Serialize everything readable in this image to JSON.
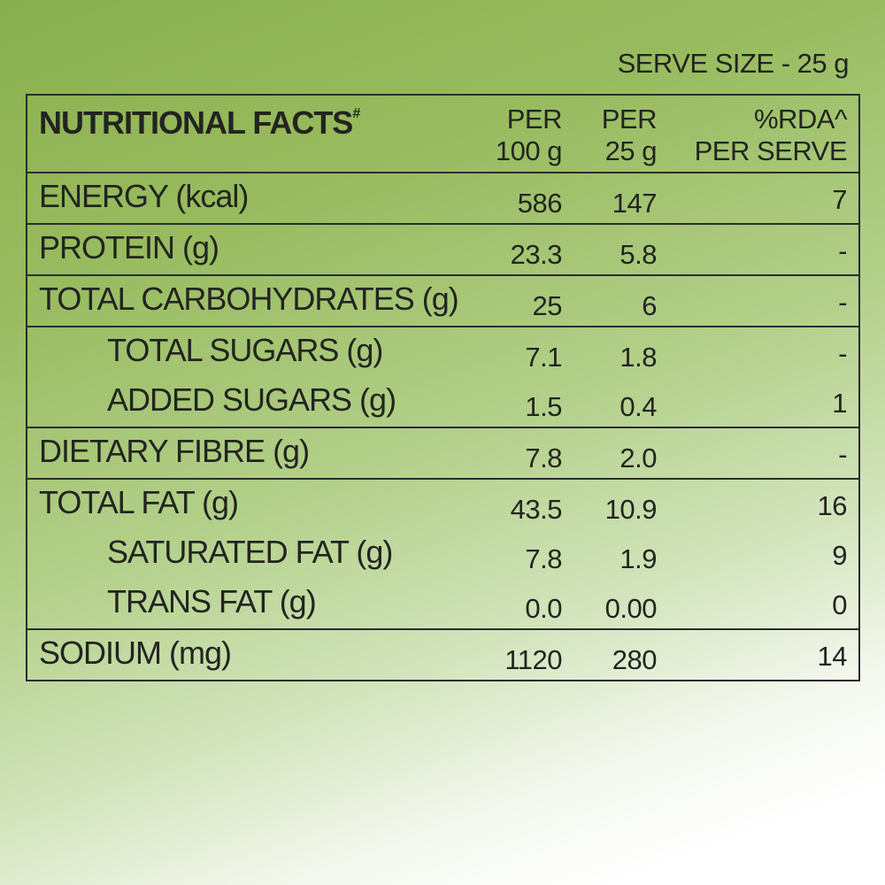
{
  "serve_size": "SERVE SIZE - 25 g",
  "header": {
    "title": "NUTRITIONAL FACTS",
    "title_mark": "#",
    "col1_line1": "PER",
    "col1_line2": "100 g",
    "col2_line1": "PER",
    "col2_line2": "25 g",
    "col3_line1": "%RDA^",
    "col3_line2": "PER SERVE"
  },
  "rows": [
    {
      "label": "ENERGY (kcal)",
      "per100": "586",
      "per25": "147",
      "rda": "7"
    },
    {
      "label": "PROTEIN (g)",
      "per100": "23.3",
      "per25": "5.8",
      "rda": "-"
    },
    {
      "label": "TOTAL CARBOHYDRATES (g)",
      "per100": "25",
      "per25": "6",
      "rda": "-"
    },
    {
      "label": "TOTAL SUGARS (g)",
      "per100": "7.1",
      "per25": "1.8",
      "rda": "-"
    },
    {
      "label": "ADDED SUGARS (g)",
      "per100": "1.5",
      "per25": "0.4",
      "rda": "1"
    },
    {
      "label": "DIETARY FIBRE (g)",
      "per100": "7.8",
      "per25": "2.0",
      "rda": "-"
    },
    {
      "label": "TOTAL FAT (g)",
      "per100": "43.5",
      "per25": "10.9",
      "rda": "16"
    },
    {
      "label": "SATURATED FAT (g)",
      "per100": "7.8",
      "per25": "1.9",
      "rda": "9"
    },
    {
      "label": "TRANS FAT (g)",
      "per100": "0.0",
      "per25": "0.00",
      "rda": "0"
    },
    {
      "label": "SODIUM (mg)",
      "per100": "1120",
      "per25": "280",
      "rda": "14"
    }
  ]
}
